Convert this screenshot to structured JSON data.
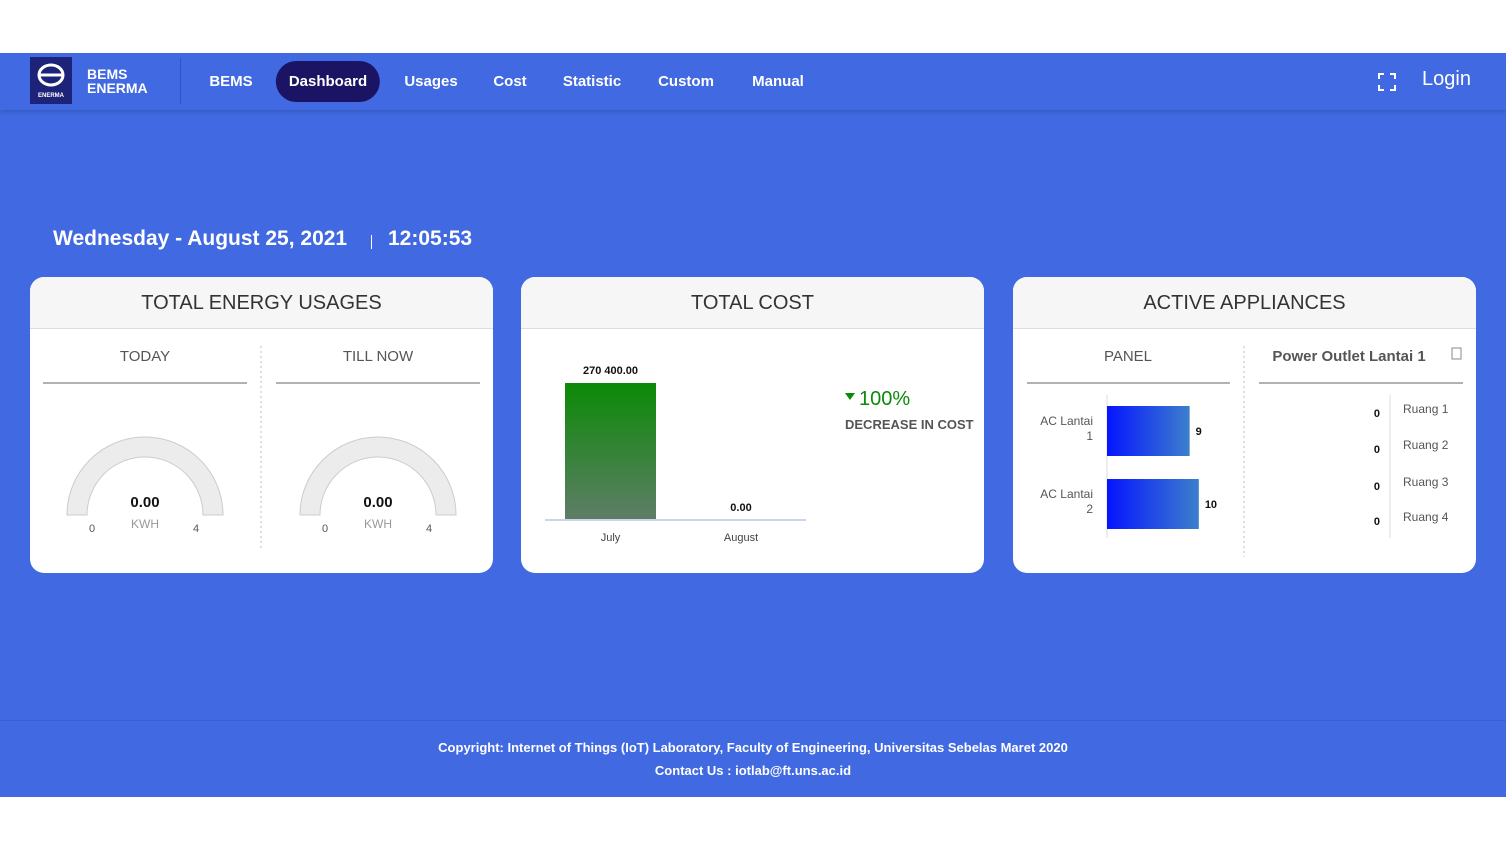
{
  "header": {
    "logo_text": "ENERMA",
    "brand": [
      "BEMS",
      "ENERMA"
    ],
    "nav": [
      "BEMS",
      "Dashboard",
      "Usages",
      "Cost",
      "Statistic",
      "Custom",
      "Manual"
    ],
    "nav_active": 1,
    "login": "Login"
  },
  "datetime": {
    "date": "Wednesday - August 25, 2021",
    "time": "12:05:53"
  },
  "energy": {
    "title": "TOTAL ENERGY USAGES",
    "gauges": [
      {
        "title": "TODAY",
        "value": 0,
        "value_label": "0.00",
        "min": 0,
        "max": 4,
        "unit": "KWH"
      },
      {
        "title": "TILL NOW",
        "value": 0,
        "value_label": "0.00",
        "min": 0,
        "max": 4,
        "unit": "KWH"
      }
    ]
  },
  "cost": {
    "title": "TOTAL COST",
    "categories": [
      "July",
      "August"
    ],
    "values": [
      270400,
      0
    ],
    "value_labels": [
      "270 400.00",
      "0.00"
    ],
    "ylim": [
      0,
      270400
    ],
    "change": "100%",
    "change_label": "DECREASE IN COST"
  },
  "appliances": {
    "title": "ACTIVE APPLIANCES",
    "panel": {
      "title": "PANEL",
      "categories": [
        "AC Lantai 1",
        "AC Lantai 2"
      ],
      "values": [
        9,
        10
      ],
      "xlim": [
        0,
        11
      ]
    },
    "outlet": {
      "title": "Power Outlet Lantai 1",
      "categories": [
        "Ruang 1",
        "Ruang 2",
        "Ruang 3",
        "Ruang 4"
      ],
      "values": [
        0,
        0,
        0,
        0
      ]
    }
  },
  "footer": {
    "copyright": "Copyright: Internet of Things (IoT) Laboratory, Faculty of Engineering, Universitas Sebelas Maret 2020",
    "contact": "Contact Us : iotlab@ft.uns.ac.id"
  }
}
